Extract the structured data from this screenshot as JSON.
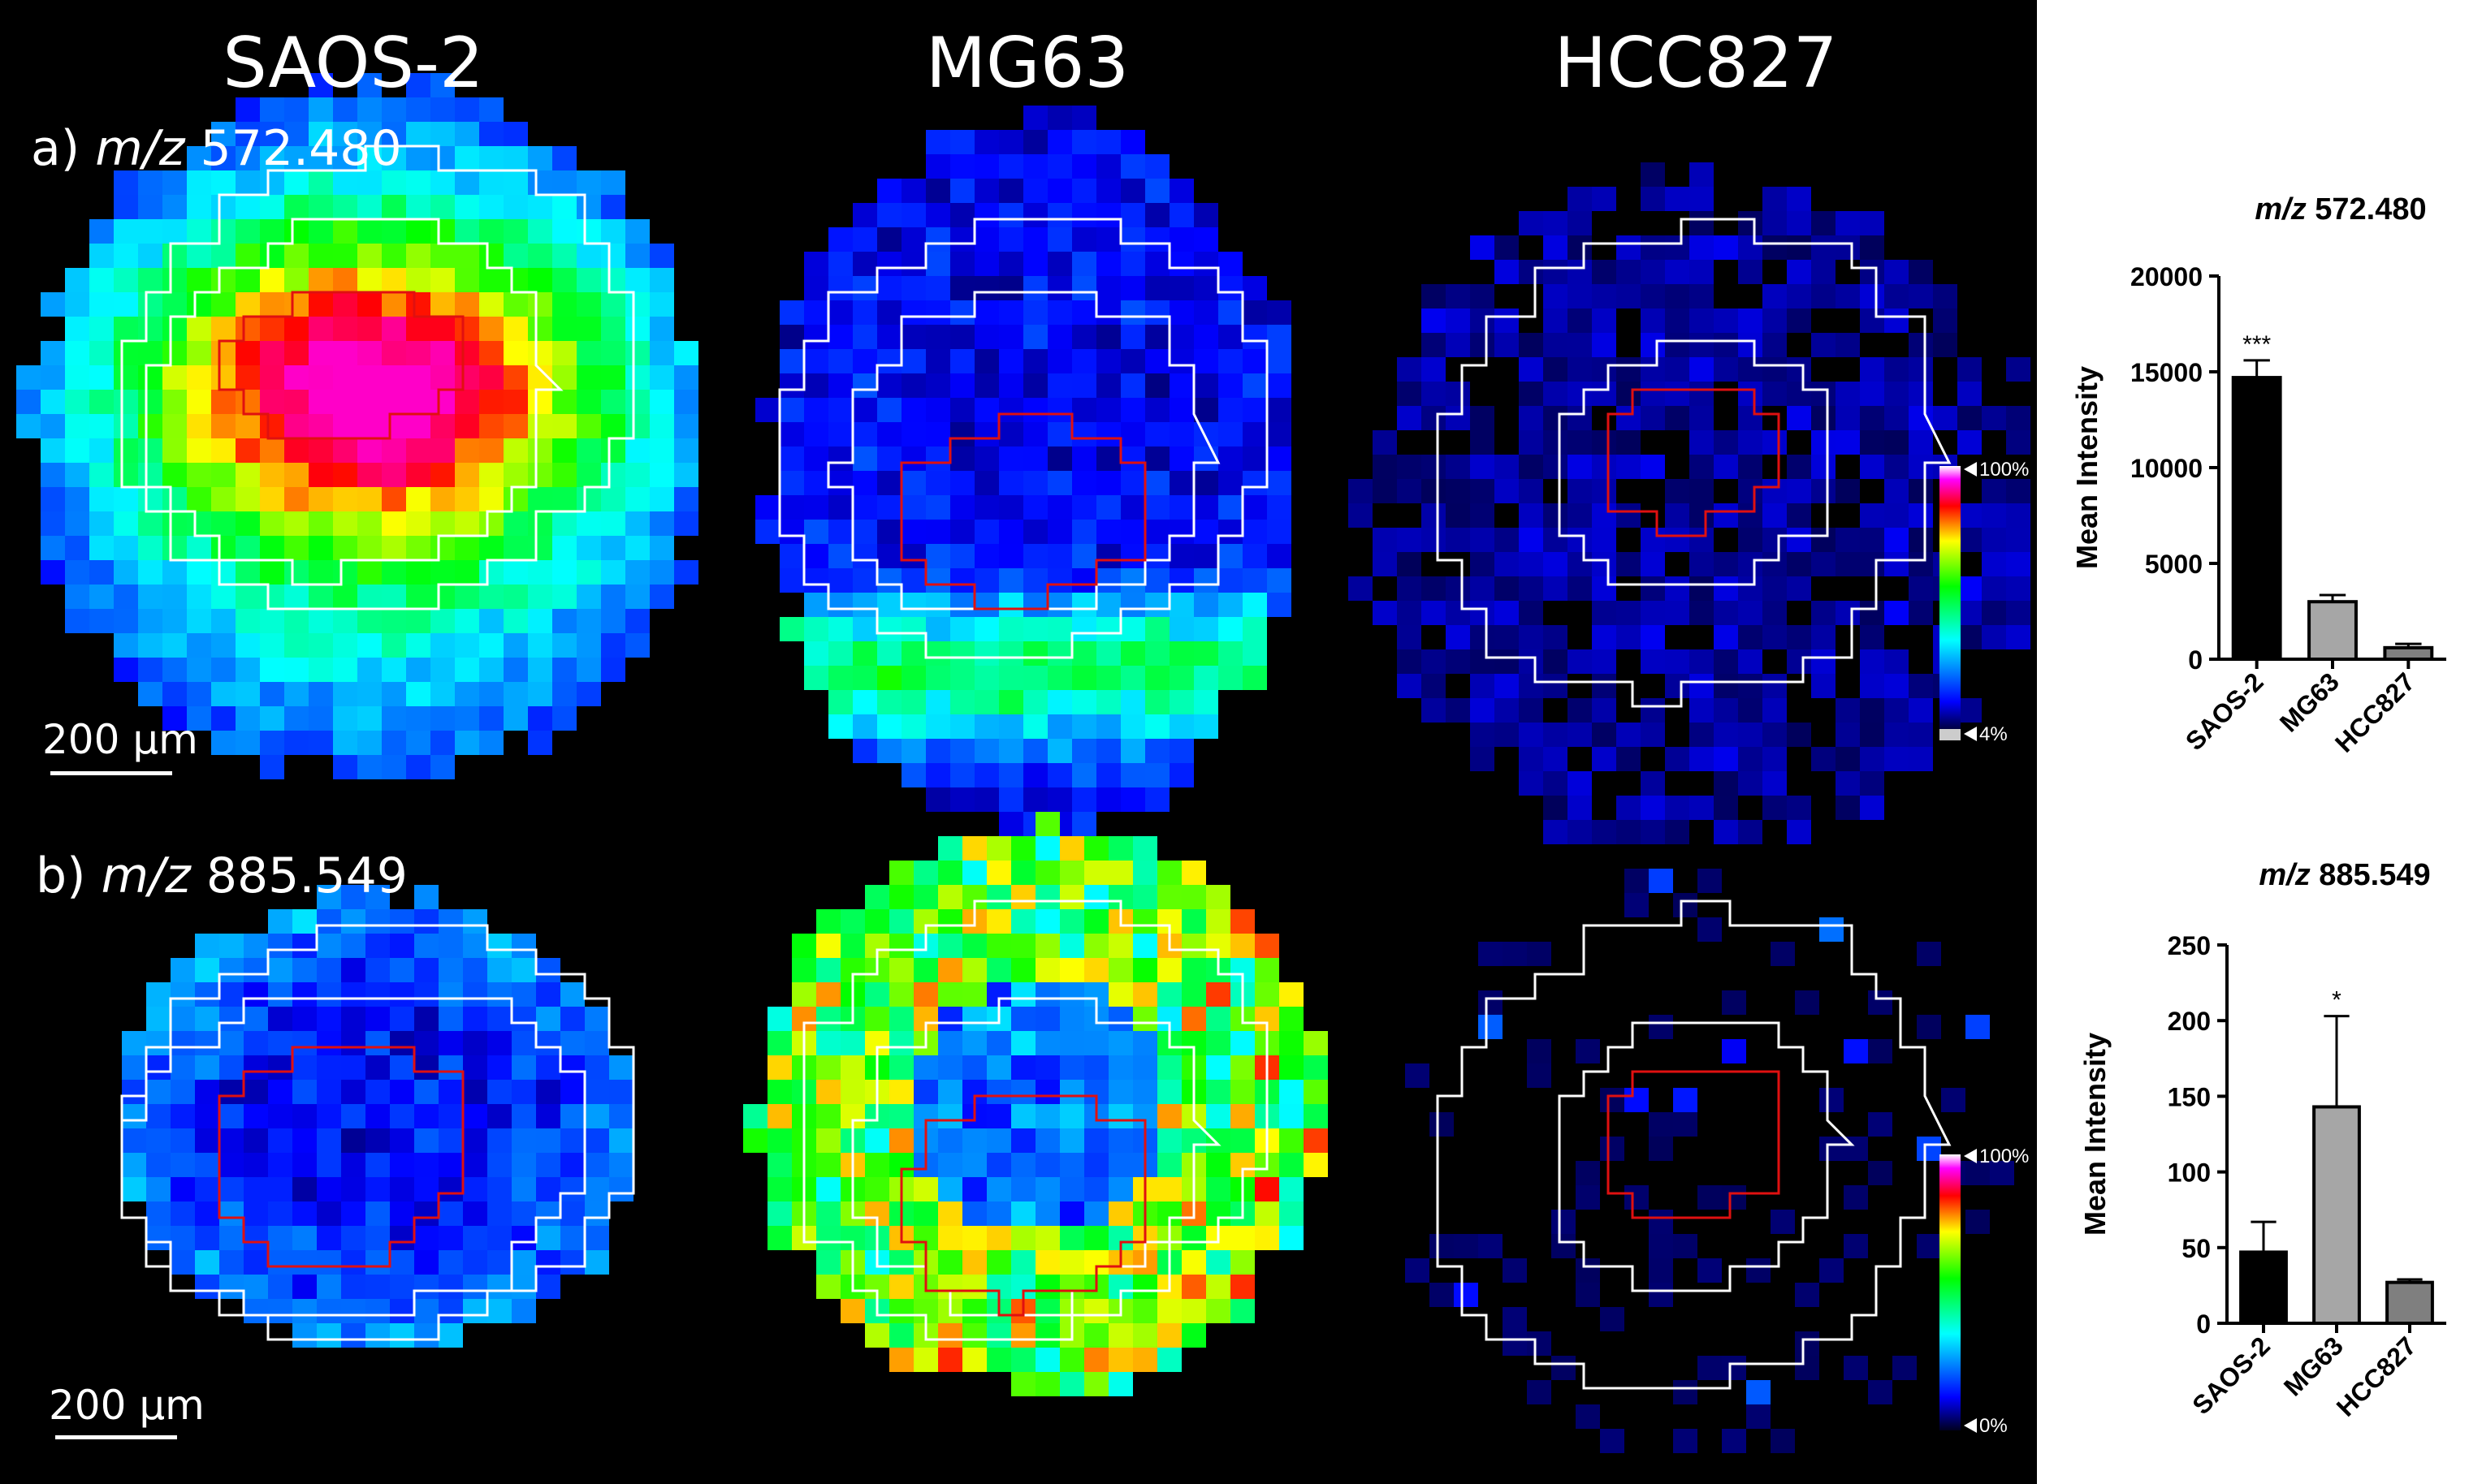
{
  "columns": [
    "SAOS-2",
    "MG63",
    "HCC827"
  ],
  "rows": [
    {
      "label_prefix": "a)",
      "label_italic": "m/z",
      "label_value": "572.480"
    },
    {
      "label_prefix": "b)",
      "label_italic": "m/z",
      "label_value": "885.549"
    }
  ],
  "scale_bar": "200 µm",
  "colorbars": [
    {
      "max_label": "100%",
      "min_label": "4%"
    },
    {
      "max_label": "100%",
      "min_label": "0%"
    }
  ],
  "colors": {
    "roi_outer": "#ffffff",
    "roi_inner": "#e01010",
    "background": "#000000"
  },
  "chart_data": [
    {
      "type": "bar",
      "title_italic": "m/z",
      "title_value": "572.480",
      "categories": [
        "SAOS-2",
        "MG63",
        "HCC827"
      ],
      "values": [
        14700,
        3000,
        600
      ],
      "errors": [
        900,
        350,
        200
      ],
      "significance": [
        "***",
        "",
        ""
      ],
      "bar_colors": [
        "#000000",
        "#a6a6a6",
        "#7f7f7f"
      ],
      "ylabel": "Mean Intensity",
      "ylim": [
        0,
        20000
      ],
      "yticks": [
        0,
        5000,
        10000,
        15000,
        20000
      ],
      "ytick_labels": [
        "0",
        "5000",
        "10000",
        "15000",
        "20000"
      ]
    },
    {
      "type": "bar",
      "title_italic": "m/z",
      "title_value": "885.549",
      "categories": [
        "SAOS-2",
        "MG63",
        "HCC827"
      ],
      "values": [
        47,
        143,
        27
      ],
      "errors": [
        20,
        60,
        2
      ],
      "significance": [
        "",
        "*",
        ""
      ],
      "bar_colors": [
        "#000000",
        "#a6a6a6",
        "#7f7f7f"
      ],
      "ylabel": "Mean Intensity",
      "ylim": [
        0,
        250
      ],
      "yticks": [
        0,
        50,
        100,
        150,
        200,
        250
      ],
      "ytick_labels": [
        "0",
        "50",
        "100",
        "150",
        "200",
        "250"
      ]
    }
  ]
}
